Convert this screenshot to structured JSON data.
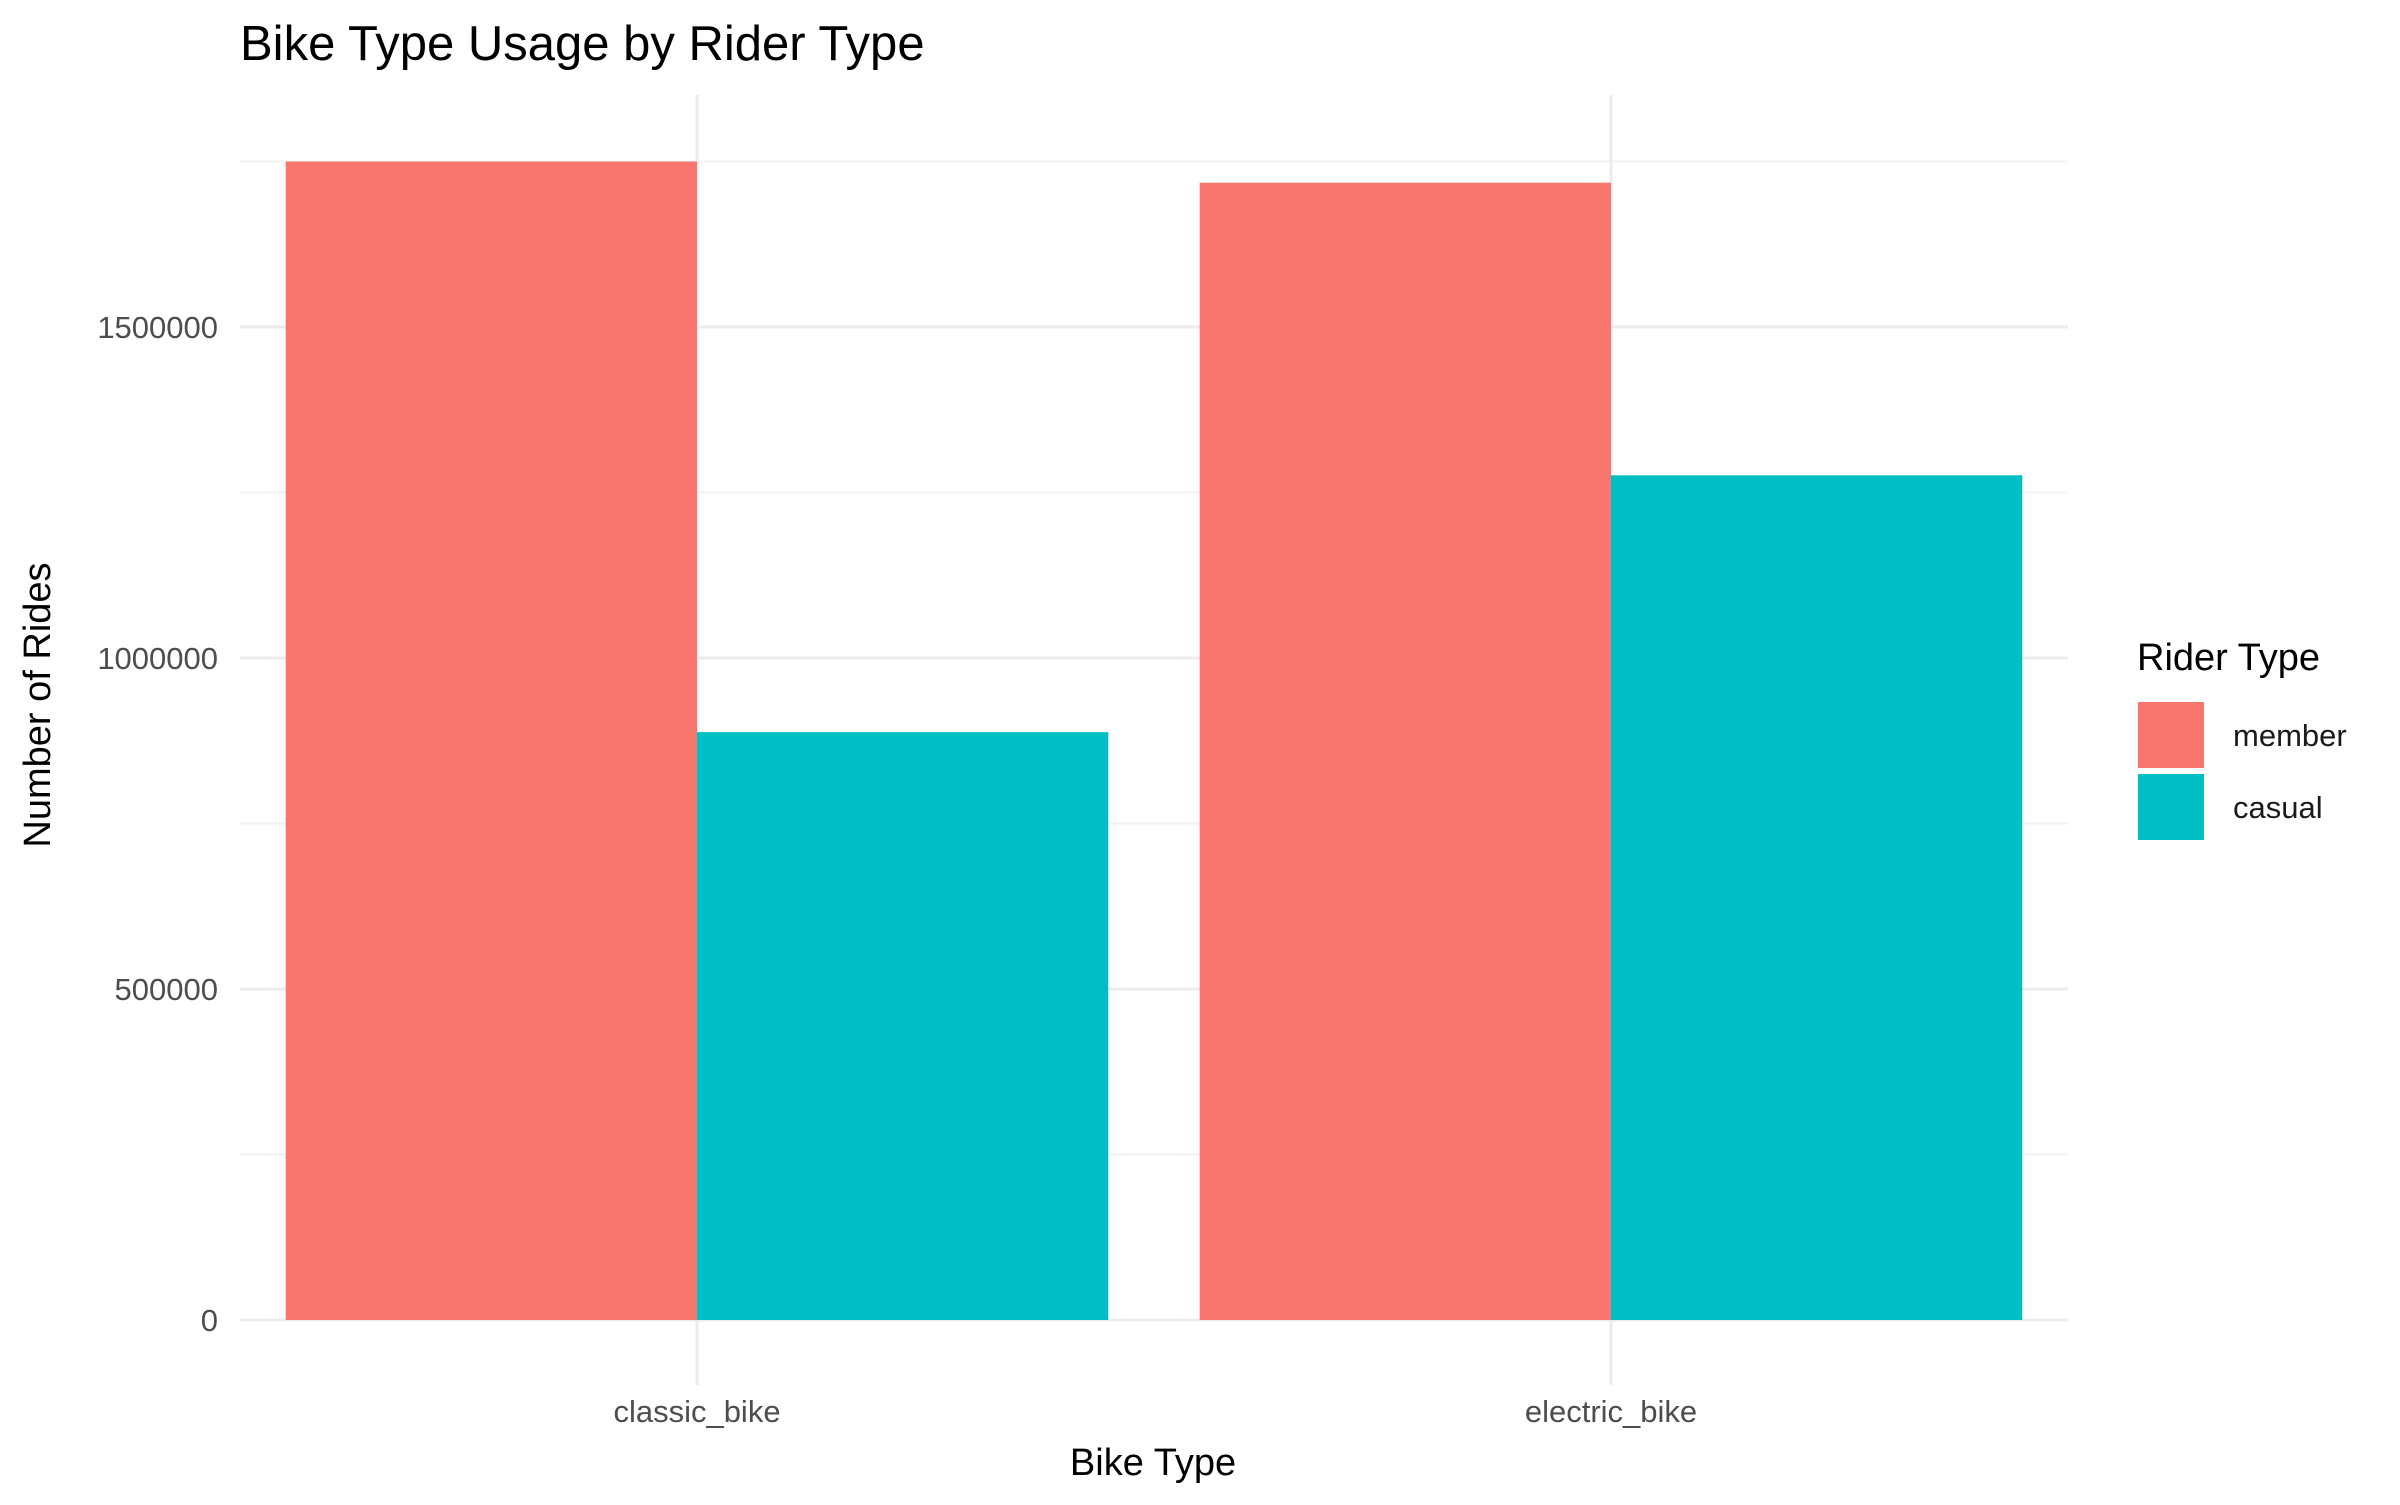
{
  "chart_data": {
    "type": "bar",
    "title": "Bike Type Usage by Rider Type",
    "xlabel": "Bike Type",
    "ylabel": "Number of Rides",
    "categories": [
      "classic_bike",
      "electric_bike"
    ],
    "series": [
      {
        "name": "member",
        "color": "#F8766D",
        "values": [
          1750000,
          1718000
        ]
      },
      {
        "name": "casual",
        "color": "#00BFC4",
        "values": [
          888000,
          1276000
        ]
      }
    ],
    "ylim": [
      0,
      1750000
    ],
    "yticks": [
      0,
      500000,
      1000000,
      1500000
    ],
    "ytick_labels": [
      "0",
      "500000",
      "1000000",
      "1500000"
    ],
    "grid": true,
    "legend": {
      "title": "Rider Type",
      "placement": "right"
    }
  }
}
